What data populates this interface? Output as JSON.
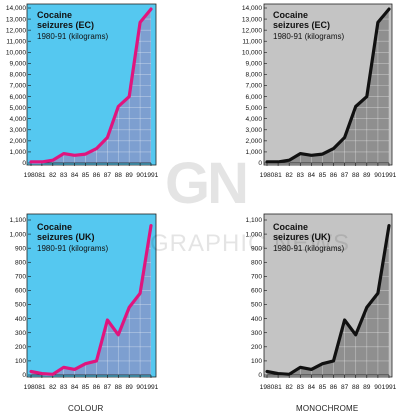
{
  "captions": {
    "left": "COLOUR",
    "right": "MONOCHROME"
  },
  "watermark": {
    "logo": "GN",
    "text": "GRAPHIC NEWS"
  },
  "colors": {
    "colour_bg": "#55c8f0",
    "colour_area": "#7d9fd0",
    "colour_line": "#e0157e",
    "mono_bg": "#c4c4c4",
    "mono_area": "#8f8f8f",
    "mono_line": "#111111"
  },
  "chart_data": [
    {
      "type": "area",
      "style": "colour",
      "title": "Cocaine seizures (EC)",
      "subtitle": "1980-91 (kilograms)",
      "x": [
        "1980",
        "81",
        "82",
        "83",
        "84",
        "85",
        "86",
        "87",
        "88",
        "89",
        "90",
        "1991"
      ],
      "values": [
        100,
        100,
        250,
        850,
        700,
        800,
        1300,
        2300,
        5100,
        6000,
        12700,
        13900
      ],
      "ylim": [
        0,
        14000
      ],
      "yticks": [
        "0",
        "1,000",
        "2,000",
        "3,000",
        "4,000",
        "5,000",
        "6,000",
        "7,000",
        "8,000",
        "9,000",
        "10,000",
        "11,000",
        "12,000",
        "13,000",
        "14,000"
      ]
    },
    {
      "type": "area",
      "style": "mono",
      "title": "Cocaine seizures (EC)",
      "subtitle": "1980-91 (kilograms)",
      "x": [
        "1980",
        "81",
        "82",
        "83",
        "84",
        "85",
        "86",
        "87",
        "88",
        "89",
        "90",
        "1991"
      ],
      "values": [
        100,
        100,
        250,
        850,
        700,
        800,
        1300,
        2300,
        5100,
        6000,
        12700,
        13900
      ],
      "ylim": [
        0,
        14000
      ],
      "yticks": [
        "0",
        "1,000",
        "2,000",
        "3,000",
        "4,000",
        "5,000",
        "6,000",
        "7,000",
        "8,000",
        "9,000",
        "10,000",
        "11,000",
        "12,000",
        "13,000",
        "14,000"
      ]
    },
    {
      "type": "area",
      "style": "colour",
      "title": "Cocaine seizures (UK)",
      "subtitle": "1980-91 (kilograms)",
      "x": [
        "1980",
        "81",
        "82",
        "83",
        "84",
        "85",
        "86",
        "87",
        "88",
        "89",
        "90",
        "1991"
      ],
      "values": [
        25,
        10,
        5,
        55,
        40,
        80,
        100,
        390,
        285,
        480,
        580,
        1060
      ],
      "ylim": [
        0,
        1100
      ],
      "yticks": [
        "0",
        "100",
        "200",
        "300",
        "400",
        "500",
        "600",
        "700",
        "800",
        "900",
        "1,000",
        "1,100"
      ]
    },
    {
      "type": "area",
      "style": "mono",
      "title": "Cocaine seizures (UK)",
      "subtitle": "1980-91 (kilograms)",
      "x": [
        "1980",
        "81",
        "82",
        "83",
        "84",
        "85",
        "86",
        "87",
        "88",
        "89",
        "90",
        "1991"
      ],
      "values": [
        25,
        10,
        5,
        55,
        40,
        80,
        100,
        390,
        285,
        480,
        580,
        1060
      ],
      "ylim": [
        0,
        1100
      ],
      "yticks": [
        "0",
        "100",
        "200",
        "300",
        "400",
        "500",
        "600",
        "700",
        "800",
        "900",
        "1,000",
        "1,100"
      ]
    }
  ]
}
